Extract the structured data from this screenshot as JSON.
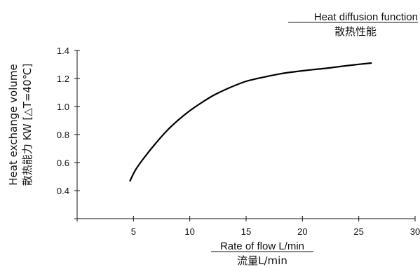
{
  "chart_data": {
    "type": "line",
    "title": "Heat diffusion function",
    "subtitle": "散热性能",
    "xlabel": "Rate of flow L/min",
    "xlabel_secondary": "流量L/min",
    "ylabel": "Heat exchange volume",
    "ylabel_secondary": "散热能力 KW [△T=40℃]",
    "xlim": [
      0,
      30
    ],
    "ylim": [
      0.2,
      1.4
    ],
    "x_ticks": [
      0,
      5,
      10,
      15,
      20,
      25,
      30
    ],
    "x_tick_labels": [
      "",
      "5",
      "10",
      "15",
      "20",
      "25",
      "30"
    ],
    "y_ticks": [
      0.2,
      0.4,
      0.6,
      0.8,
      1.0,
      1.2,
      1.4
    ],
    "y_tick_labels": [
      "",
      "0.4",
      "0.6",
      "0.8",
      "1.0",
      "1.2",
      "1.4"
    ],
    "grid": false,
    "series": [
      {
        "x": [
          4.7,
          5.2,
          6,
          7,
          8,
          9,
          10,
          11,
          12,
          13,
          14,
          15,
          16,
          17,
          18,
          19,
          20,
          21,
          22,
          23,
          24,
          25,
          26.1
        ],
        "y": [
          0.47,
          0.55,
          0.64,
          0.74,
          0.83,
          0.905,
          0.97,
          1.025,
          1.075,
          1.115,
          1.15,
          1.18,
          1.2,
          1.217,
          1.233,
          1.245,
          1.255,
          1.264,
          1.272,
          1.282,
          1.292,
          1.301,
          1.31
        ],
        "color": "#000000"
      }
    ]
  }
}
